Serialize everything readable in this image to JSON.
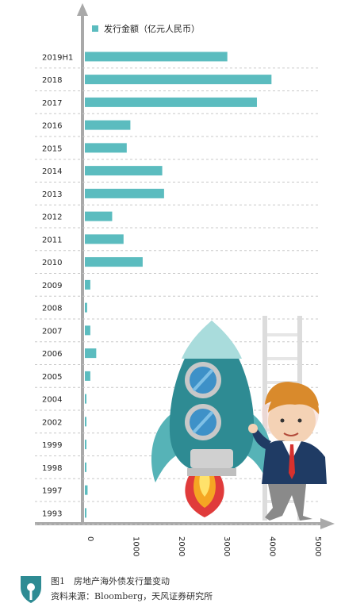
{
  "chart_data": {
    "type": "bar",
    "orientation": "horizontal",
    "legend": "发行金额（亿元人民币）",
    "series_color": "#5bbcbf",
    "categories": [
      "2019H1",
      "2018",
      "2017",
      "2016",
      "2015",
      "2014",
      "2013",
      "2012",
      "2011",
      "2010",
      "2009",
      "2008",
      "2007",
      "2006",
      "2005",
      "2004",
      "2002",
      "1999",
      "1998",
      "1997",
      "1993"
    ],
    "values": [
      3130,
      4100,
      3780,
      1000,
      920,
      1700,
      1740,
      600,
      850,
      1270,
      120,
      50,
      120,
      250,
      120,
      20,
      20,
      20,
      20,
      60,
      20
    ],
    "xticks": [
      "0",
      "1000",
      "2000",
      "3000",
      "4000",
      "5000"
    ],
    "xlim": [
      0,
      5000
    ],
    "grid": "dashed horizontal"
  },
  "caption": {
    "title": "图1　房地产海外债发行量变动",
    "source": "资料来源：Bloomberg，天风证券研究所"
  },
  "illustration": {
    "items": [
      "rocket-icon",
      "businessman-icon",
      "ladder-icon"
    ]
  }
}
